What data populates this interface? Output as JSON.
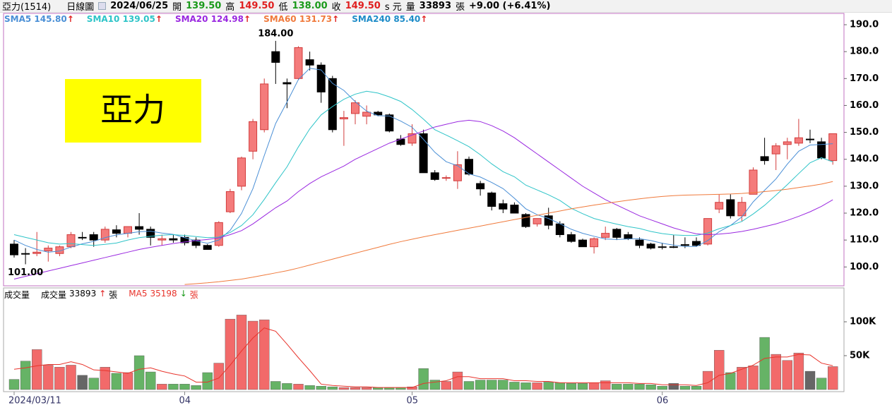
{
  "header": {
    "name": "亞力(1514)",
    "period": "日線圖",
    "date": "2024/06/25",
    "open_label": "開",
    "open": "139.50",
    "high_label": "高",
    "high": "149.50",
    "low_label": "低",
    "low": "138.00",
    "close_label": "收",
    "close": "149.50",
    "currency": "s 元",
    "volume_label": "量",
    "volume": "33893",
    "volume_unit": "張",
    "change": "+9.00 (+6.41%)"
  },
  "chart_data": [
    {
      "type": "candlestick",
      "watermark": "亞力",
      "categories": [
        "2024/03/11",
        null,
        null,
        null,
        null,
        null,
        null,
        null,
        null,
        null,
        null,
        null,
        null,
        null,
        null,
        "04",
        null,
        null,
        null,
        null,
        null,
        null,
        null,
        null,
        null,
        null,
        null,
        null,
        null,
        null,
        null,
        null,
        null,
        null,
        null,
        "05",
        null,
        null,
        null,
        null,
        null,
        null,
        null,
        null,
        null,
        null,
        null,
        null,
        null,
        null,
        null,
        null,
        null,
        null,
        null,
        null,
        null,
        "06",
        null,
        null,
        null,
        null,
        null,
        null,
        null,
        null,
        null,
        null,
        null,
        null,
        null,
        null,
        null
      ],
      "open": [
        108.5,
        105,
        105,
        106,
        105,
        107.5,
        111,
        112,
        110,
        113.8,
        112.5,
        115,
        114,
        110,
        110.5,
        111,
        110,
        108,
        108,
        120.5,
        130,
        143,
        151,
        180,
        168.5,
        170,
        177,
        175,
        170,
        155,
        157,
        156,
        157.5,
        156.5,
        147.5,
        146,
        149.5,
        135,
        133,
        132,
        140,
        131,
        127.5,
        123.5,
        123,
        119.5,
        116,
        119,
        116,
        112,
        110,
        107.5,
        111,
        114,
        112,
        110,
        108.5,
        107.5,
        107.5,
        108.3,
        109.5,
        108.5,
        121.5,
        125,
        119,
        127,
        141,
        142,
        145.5,
        146,
        147.5,
        146.5,
        139.5
      ],
      "high": [
        110,
        107,
        113,
        108,
        108,
        113,
        113,
        113,
        115,
        115.5,
        115,
        120,
        115,
        112,
        112,
        112,
        111,
        108.5,
        117,
        129,
        141,
        155,
        170,
        184,
        170,
        182,
        180,
        176,
        171,
        158,
        162,
        160,
        158,
        157,
        149,
        153,
        151,
        136,
        134,
        143,
        141,
        132,
        128,
        125,
        124,
        120,
        118,
        122,
        117,
        113,
        110.5,
        111,
        115,
        114.5,
        113,
        111,
        109,
        109,
        112,
        111,
        111,
        118,
        127,
        127,
        126,
        137,
        148,
        146,
        148,
        155,
        151,
        148,
        149.5
      ],
      "low": [
        103.5,
        101,
        104,
        102,
        104,
        107,
        110,
        107.5,
        109,
        111,
        111,
        112,
        108,
        108,
        109,
        108,
        107,
        106.5,
        107.5,
        120,
        128.5,
        140,
        150,
        168,
        159,
        169.5,
        173,
        161,
        150,
        145,
        153,
        153,
        156,
        150,
        145,
        145,
        135,
        132,
        132,
        129,
        134,
        126.5,
        121,
        120,
        120,
        114.5,
        115,
        114,
        111,
        109,
        107.5,
        105,
        110,
        110,
        110,
        107,
        106.5,
        106.5,
        107,
        107,
        107.5,
        108,
        120,
        118,
        117,
        127,
        138,
        136,
        140,
        145,
        146,
        140,
        138
      ],
      "close": [
        104.5,
        104.8,
        105.5,
        107,
        107.5,
        112,
        111,
        110,
        114,
        112.5,
        115,
        114,
        111,
        110.5,
        110,
        109,
        108,
        106.5,
        116.5,
        128,
        140.5,
        154,
        168,
        176,
        168,
        181.5,
        175,
        165,
        151,
        155.5,
        161,
        157.5,
        156.5,
        150.5,
        145.5,
        149.5,
        135,
        132.5,
        133.2,
        138,
        134.5,
        129,
        122.5,
        121.5,
        120,
        115,
        118,
        115.5,
        112,
        109.5,
        107.5,
        110.5,
        112.5,
        111,
        110.5,
        108,
        107,
        107.3,
        107.5,
        108,
        108,
        118,
        124,
        119,
        124,
        136,
        139.5,
        145,
        146.5,
        148,
        147.5,
        140.5,
        149.5
      ],
      "ylim": [
        93,
        194.2
      ],
      "yticks": [
        {
          "value": 100,
          "label": "100.0"
        },
        {
          "value": 110,
          "label": "110.0"
        },
        {
          "value": 120,
          "label": "120.0"
        },
        {
          "value": 130,
          "label": "130.0"
        },
        {
          "value": 140,
          "label": "140.0"
        },
        {
          "value": 150,
          "label": "150.0"
        },
        {
          "value": 160,
          "label": "160.0"
        },
        {
          "value": 170,
          "label": "170.0"
        },
        {
          "value": 180,
          "label": "180.0"
        },
        {
          "value": 190,
          "label": "190.0"
        }
      ],
      "annotations": [
        {
          "text": "184.00",
          "value": 184
        },
        {
          "text": "101.00",
          "value": 101
        }
      ],
      "series": [
        {
          "name": "SMA5",
          "color": "#4a8fd6",
          "last_label": "145.80",
          "arrow": "↑",
          "values": [
            110,
            108,
            106.5,
            105.5,
            105.9,
            107.4,
            108.6,
            109.5,
            110.9,
            111.9,
            112.5,
            113.1,
            113.3,
            112.6,
            112.1,
            110.9,
            109.7,
            108.8,
            110,
            113.6,
            119.9,
            129.1,
            141.4,
            153.3,
            161.3,
            169.6,
            173.8,
            173.2,
            168.2,
            165.6,
            161.4,
            157.9,
            156.2,
            156.1,
            154.2,
            151.9,
            147.4,
            142.6,
            139.1,
            137.6,
            134.6,
            133.4,
            131.4,
            129.1,
            125.5,
            121.6,
            119.4,
            118,
            116.1,
            114,
            112.5,
            111.4,
            110.4,
            110.2,
            110.4,
            110.5,
            109.8,
            108.8,
            108.1,
            107.6,
            107.6,
            109.8,
            113.1,
            115.4,
            118.6,
            124.2,
            128.5,
            132.7,
            138.2,
            143,
            145.3,
            145.5,
            145.8
          ]
        },
        {
          "name": "SMA10",
          "color": "#2ec4c8",
          "last_label": "139.05",
          "arrow": "↑",
          "values": [
            112,
            111,
            110,
            109,
            108.5,
            108.7,
            108.3,
            108,
            108.4,
            108.9,
            110,
            110.9,
            111.4,
            111.8,
            112,
            111.7,
            111.3,
            110.9,
            111.1,
            112.8,
            115.4,
            119.4,
            125.1,
            131.3,
            137.2,
            144.6,
            151.3,
            156.5,
            159.6,
            162.3,
            164.2,
            165.3,
            164.6,
            163.2,
            161.5,
            158.5,
            154.9,
            151,
            149,
            146.9,
            144.7,
            141.7,
            138.3,
            135.4,
            133.5,
            130.4,
            128.6,
            126.8,
            124.7,
            121.8,
            119.8,
            118,
            116.9,
            115.9,
            115,
            114.3,
            113.2,
            112.4,
            111.9,
            111.7,
            111.7,
            112.6,
            114.2,
            115.4,
            116.9,
            119.7,
            122.9,
            126.7,
            130.6,
            134.7,
            138.7,
            140.6,
            139.05
          ]
        },
        {
          "name": "SMA20",
          "color": "#9a28e0",
          "last_label": "124.98",
          "arrow": "↑",
          "values": [
            95.5,
            96.5,
            97.5,
            98.5,
            99.5,
            100.5,
            101.5,
            102.5,
            103.5,
            104.5,
            105.5,
            106.5,
            107.3,
            108,
            108.7,
            109.3,
            109.8,
            110.2,
            110.8,
            112,
            113.5,
            116,
            119,
            122,
            124.5,
            128,
            131,
            133.5,
            135.5,
            137.5,
            140,
            142,
            144,
            146,
            147.5,
            149,
            150.5,
            152,
            153,
            154,
            154.5,
            154,
            152.5,
            150.5,
            148,
            145,
            142,
            139,
            136,
            133,
            130,
            127.5,
            125,
            123,
            121,
            119,
            117.5,
            116,
            114.5,
            113.3,
            112.3,
            112,
            112.2,
            112.6,
            113.2,
            114,
            115,
            116,
            117.3,
            118.8,
            120.5,
            122.5,
            124.98
          ]
        },
        {
          "name": "SMA60",
          "color": "#f07a3c",
          "last_label": "131.73",
          "arrow": "↑",
          "values": [
            null,
            null,
            null,
            null,
            null,
            null,
            null,
            null,
            null,
            null,
            null,
            null,
            null,
            null,
            null,
            93.5,
            93.8,
            94.1,
            94.5,
            95,
            95.5,
            96.2,
            97,
            97.8,
            98.6,
            99.6,
            100.7,
            101.8,
            102.9,
            104,
            105.1,
            106.2,
            107.3,
            108.4,
            109.4,
            110.3,
            111.2,
            112,
            112.8,
            113.6,
            114.4,
            115.2,
            116,
            116.8,
            117.6,
            118.4,
            119.2,
            120,
            120.8,
            121.6,
            122.3,
            123,
            123.6,
            124.2,
            124.8,
            125.3,
            125.8,
            126.2,
            126.5,
            126.7,
            126.8,
            126.9,
            127,
            127.1,
            127.3,
            127.6,
            128,
            128.4,
            128.9,
            129.5,
            130.1,
            130.8,
            131.73
          ]
        },
        {
          "name": "SMA240",
          "color": "#1e8cc8",
          "last_label": "85.40",
          "arrow": "↑"
        }
      ]
    },
    {
      "type": "bar",
      "title": "成交量",
      "name": "成交量",
      "arrow": "↑",
      "unit": "張",
      "values": [
        15000,
        42000,
        59000,
        36000,
        33000,
        36000,
        21000,
        17000,
        33000,
        24000,
        25000,
        50000,
        26000,
        8000,
        8000,
        8000,
        6000,
        25000,
        39000,
        104000,
        110000,
        101000,
        103000,
        12000,
        9000,
        8000,
        6000,
        5000,
        4000,
        3000,
        3000,
        3000,
        3000,
        3000,
        3000,
        4000,
        31000,
        14000,
        12000,
        26000,
        12000,
        14000,
        14000,
        14000,
        11000,
        10000,
        10000,
        11000,
        10000,
        9000,
        9000,
        10000,
        13000,
        8000,
        8000,
        8000,
        7000,
        5000,
        9000,
        5000,
        5000,
        27000,
        58000,
        25000,
        33000,
        35000,
        77000,
        52000,
        43000,
        54000,
        27000,
        17000,
        33893
      ],
      "colors": {
        "up": "#f26a6a",
        "down": "#66b366",
        "flat": "#666666"
      },
      "ylim": [
        0,
        150000
      ],
      "yticks": [
        {
          "value": 50000,
          "label": "50K"
        },
        {
          "value": 100000,
          "label": "100K"
        }
      ],
      "series": [
        {
          "name": "MA5",
          "color": "#e8342c",
          "arrow": "↓",
          "unit": "張",
          "values": [
            30000,
            32000,
            35000,
            37000,
            37000,
            41000,
            37000,
            29000,
            28000,
            26000,
            24000,
            30000,
            32000,
            27000,
            23000,
            20000,
            11000,
            11000,
            17000,
            36000,
            57000,
            76000,
            91000,
            86000,
            67000,
            47000,
            28000,
            8000,
            6000,
            5000,
            4000,
            4000,
            3000,
            3000,
            3000,
            3000,
            9000,
            11000,
            13000,
            19000,
            19000,
            16000,
            16000,
            16000,
            13000,
            13000,
            12000,
            12000,
            10000,
            10000,
            10000,
            10000,
            10000,
            10000,
            10000,
            9000,
            9000,
            7000,
            7000,
            7000,
            6000,
            10000,
            21000,
            24000,
            30000,
            36000,
            46000,
            48000,
            48000,
            52000,
            51000,
            39000,
            35198
          ]
        }
      ]
    }
  ]
}
